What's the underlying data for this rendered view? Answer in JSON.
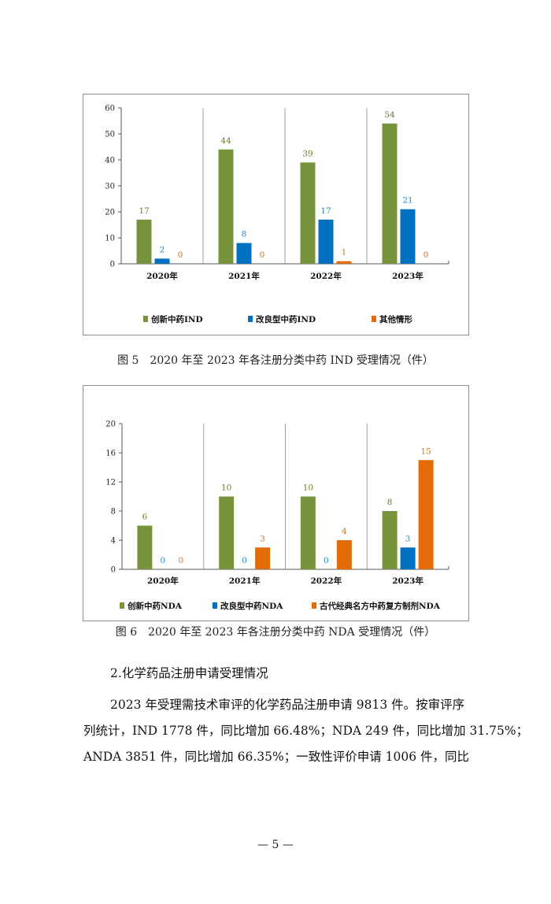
{
  "charts": [
    {
      "caption": "图 5　2020 年至 2023 年各注册分类中药 IND 受理情况（件）",
      "chart_data": {
        "type": "bar",
        "categories": [
          "2020年",
          "2021年",
          "2022年",
          "2023年"
        ],
        "series": [
          {
            "name": "创新中药IND",
            "values": [
              17,
              44,
              39,
              54
            ],
            "color": "#77933c",
            "label_color": "#6b7a2e"
          },
          {
            "name": "改良型中药IND",
            "values": [
              2,
              8,
              17,
              21
            ],
            "color": "#0070c0",
            "label_color": "#1f8ad0"
          },
          {
            "name": "其他情形",
            "values": [
              0,
              0,
              1,
              0
            ],
            "color": "#e36c09",
            "label_color": "#d0741e"
          }
        ],
        "yticks": [
          "0",
          "10",
          "20",
          "30",
          "40",
          "50",
          "60"
        ],
        "ylim": [
          0,
          60
        ],
        "legend": "bottom",
        "grid": false
      }
    },
    {
      "caption": "图 6　2020 年至 2023 年各注册分类中药 NDA 受理情况（件）",
      "chart_data": {
        "type": "bar",
        "categories": [
          "2020年",
          "2021年",
          "2022年",
          "2023年"
        ],
        "series": [
          {
            "name": "创新中药NDA",
            "values": [
              6,
              10,
              10,
              8
            ],
            "color": "#77933c",
            "label_color": "#6b7a2e"
          },
          {
            "name": "改良型中药NDA",
            "values": [
              0,
              0,
              0,
              3
            ],
            "color": "#0070c0",
            "label_color": "#1f8ad0"
          },
          {
            "name": "古代经典名方中药复方制剂NDA",
            "values": [
              0,
              3,
              4,
              15
            ],
            "color": "#e36c09",
            "label_color": "#d0741e"
          }
        ],
        "yticks": [
          "0",
          "4",
          "8",
          "12",
          "16",
          "20"
        ],
        "ylim": [
          0,
          20
        ],
        "legend": "bottom",
        "grid": false
      }
    }
  ],
  "section": {
    "heading": "2.化学药品注册申请受理情况",
    "lines": [
      "2023 年受理需技术审评的化学药品注册申请 9813 件。按审评序",
      "列统计，IND 1778 件，同比增加 66.48%；NDA 249 件，同比增加 31.75%；",
      "ANDA 3851 件，同比增加 66.35%；一致性评价申请 1006 件，同比"
    ]
  },
  "page_number": "— 5 —"
}
